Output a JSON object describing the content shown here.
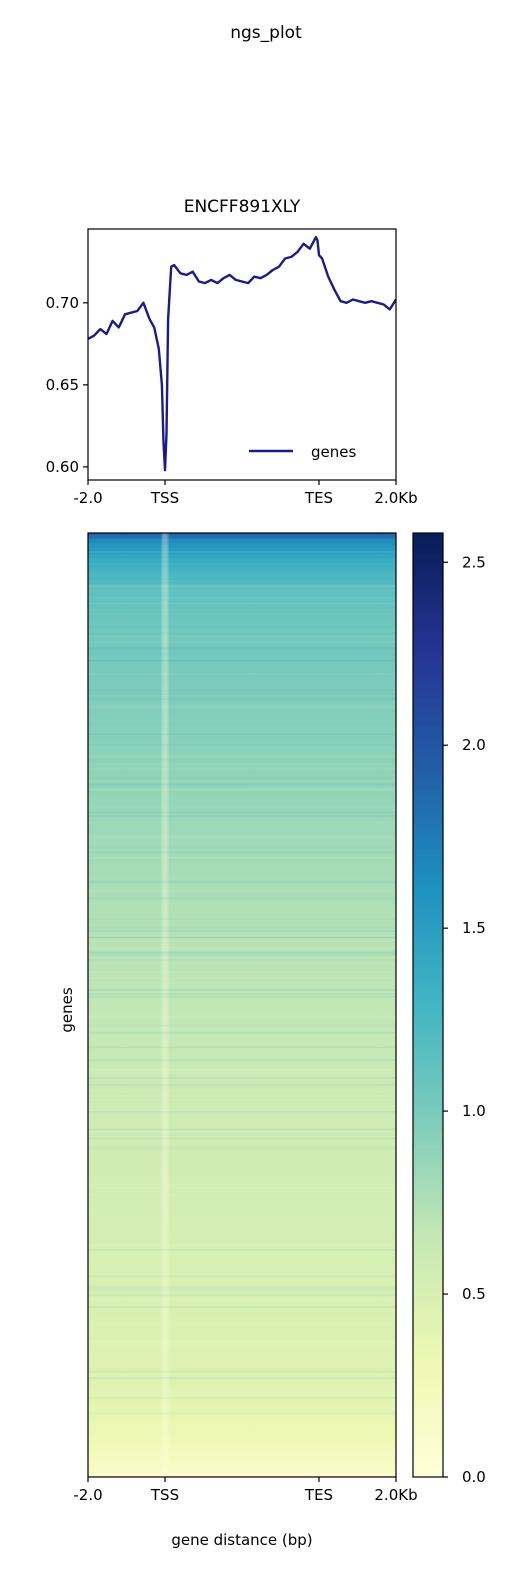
{
  "figure": {
    "suptitle": "ngs_plot"
  },
  "colors": {
    "profile_line": "#1b1b8c",
    "colormap": [
      "#ffffd9",
      "#edf8b1",
      "#c7e9b4",
      "#7fcdbb",
      "#41b6c4",
      "#1d91c0",
      "#225ea8",
      "#253494",
      "#081d58"
    ]
  },
  "chart_data": [
    {
      "type": "line",
      "title": "ENCFF891XLY",
      "xlabel": "",
      "ylabel": "",
      "x_ticks": [
        "-2.0",
        "TSS",
        "TES",
        "2.0Kb"
      ],
      "x_tick_positions": [
        0,
        0.25,
        0.75,
        1.0
      ],
      "xlim": [
        0,
        1
      ],
      "ylim": [
        0.592,
        0.745
      ],
      "y_ticks": [
        0.6,
        0.65,
        0.7
      ],
      "y_tick_labels": [
        "0.60",
        "0.65",
        "0.70"
      ],
      "legend": "lower-right",
      "series": [
        {
          "name": "genes",
          "x": [
            0,
            0.02,
            0.04,
            0.06,
            0.08,
            0.1,
            0.12,
            0.14,
            0.16,
            0.18,
            0.2,
            0.215,
            0.23,
            0.24,
            0.245,
            0.25,
            0.255,
            0.26,
            0.27,
            0.28,
            0.3,
            0.32,
            0.34,
            0.36,
            0.38,
            0.4,
            0.42,
            0.44,
            0.46,
            0.48,
            0.5,
            0.52,
            0.54,
            0.56,
            0.58,
            0.6,
            0.62,
            0.64,
            0.66,
            0.68,
            0.7,
            0.72,
            0.74,
            0.745,
            0.75,
            0.76,
            0.78,
            0.8,
            0.82,
            0.84,
            0.86,
            0.88,
            0.9,
            0.92,
            0.94,
            0.96,
            0.98,
            1.0
          ],
          "values": [
            0.678,
            0.68,
            0.684,
            0.681,
            0.689,
            0.685,
            0.693,
            0.694,
            0.695,
            0.7,
            0.69,
            0.685,
            0.672,
            0.65,
            0.615,
            0.598,
            0.62,
            0.69,
            0.722,
            0.723,
            0.718,
            0.717,
            0.719,
            0.713,
            0.712,
            0.714,
            0.712,
            0.715,
            0.717,
            0.714,
            0.713,
            0.712,
            0.716,
            0.715,
            0.717,
            0.72,
            0.722,
            0.727,
            0.728,
            0.731,
            0.736,
            0.733,
            0.74,
            0.738,
            0.729,
            0.727,
            0.716,
            0.708,
            0.701,
            0.7,
            0.702,
            0.701,
            0.7,
            0.701,
            0.7,
            0.699,
            0.696,
            0.702
          ]
        }
      ]
    },
    {
      "type": "heatmap",
      "xlabel": "gene distance (bp)",
      "ylabel": "genes",
      "x_ticks": [
        "-2.0",
        "TSS",
        "TES",
        "2.0Kb"
      ],
      "x_tick_positions": [
        0,
        0.25,
        0.75,
        1.0
      ],
      "colorbar": {
        "range": [
          0.0,
          2.58
        ],
        "ticks": [
          0.0,
          0.5,
          1.0,
          1.5,
          2.0,
          2.5
        ],
        "tick_labels": [
          "0.0",
          "0.5",
          "1.0",
          "1.5",
          "2.0",
          "2.5"
        ]
      },
      "row_profile": [
        {
          "pos": 0.0,
          "value": 1.95
        },
        {
          "pos": 0.01,
          "value": 1.6
        },
        {
          "pos": 0.03,
          "value": 1.35
        },
        {
          "pos": 0.06,
          "value": 1.15
        },
        {
          "pos": 0.1,
          "value": 1.05
        },
        {
          "pos": 0.2,
          "value": 0.95
        },
        {
          "pos": 0.3,
          "value": 0.85
        },
        {
          "pos": 0.4,
          "value": 0.75
        },
        {
          "pos": 0.5,
          "value": 0.67
        },
        {
          "pos": 0.6,
          "value": 0.6
        },
        {
          "pos": 0.7,
          "value": 0.55
        },
        {
          "pos": 0.8,
          "value": 0.5
        },
        {
          "pos": 0.9,
          "value": 0.45
        },
        {
          "pos": 0.95,
          "value": 0.33
        },
        {
          "pos": 1.0,
          "value": 0.12
        }
      ]
    }
  ]
}
